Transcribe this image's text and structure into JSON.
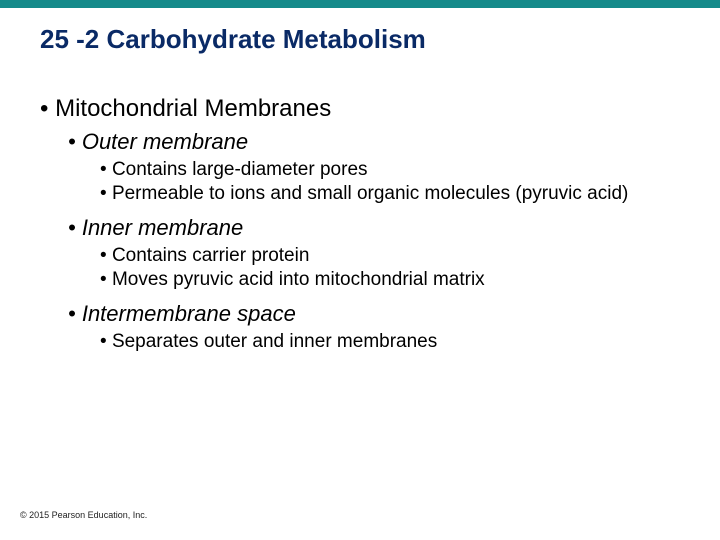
{
  "colors": {
    "topbar": "#158a8a",
    "title": "#0a2a66",
    "text": "#000000"
  },
  "typography": {
    "title_fontsize": 26,
    "lvl1_fontsize": 24,
    "lvl2_fontsize": 22,
    "lvl3_fontsize": 19,
    "footer_fontsize": 9
  },
  "title": "25 -2 Carbohydrate Metabolism",
  "bullets": {
    "lvl1_0": "Mitochondrial Membranes",
    "lvl2_0": "Outer membrane",
    "lvl3_0": "Contains large-diameter pores",
    "lvl3_1": "Permeable to ions and small organic molecules (pyruvic acid)",
    "lvl2_1": "Inner membrane",
    "lvl3_2": "Contains carrier protein",
    "lvl3_3": "Moves pyruvic acid into mitochondrial matrix",
    "lvl2_2": "Intermembrane space",
    "lvl3_4": "Separates outer and inner membranes"
  },
  "footer": "© 2015 Pearson Education, Inc."
}
